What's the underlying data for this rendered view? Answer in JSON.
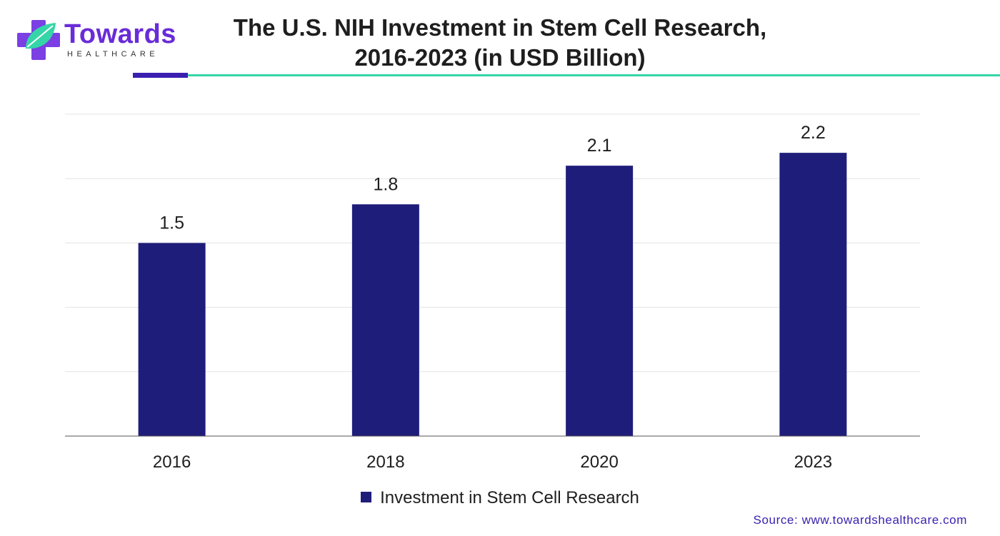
{
  "brand": {
    "name": "Towards",
    "sub": "HEALTHCARE",
    "colors": {
      "purple": "#6a2bd8",
      "teal": "#34d6a7",
      "navy": "#1f1d7a"
    }
  },
  "title_line1": "The U.S. NIH Investment in Stem Cell Research,",
  "title_line2": "2016-2023 (in USD Billion)",
  "legend_label": "Investment in Stem Cell Research",
  "source": "Source: www.towardshealthcare.com",
  "chart_data": {
    "type": "bar",
    "title": "The U.S. NIH Investment in Stem Cell Research, 2016-2023 (in USD Billion)",
    "categories": [
      "2016",
      "2018",
      "2020",
      "2023"
    ],
    "series": [
      {
        "name": "Investment in Stem Cell Research",
        "values": [
          1.5,
          1.8,
          2.1,
          2.2
        ],
        "color": "#1f1d7a"
      }
    ],
    "ylim": [
      0,
      2.5
    ],
    "grid": true,
    "legend_position": "bottom-center",
    "xlabel": "",
    "ylabel": ""
  }
}
